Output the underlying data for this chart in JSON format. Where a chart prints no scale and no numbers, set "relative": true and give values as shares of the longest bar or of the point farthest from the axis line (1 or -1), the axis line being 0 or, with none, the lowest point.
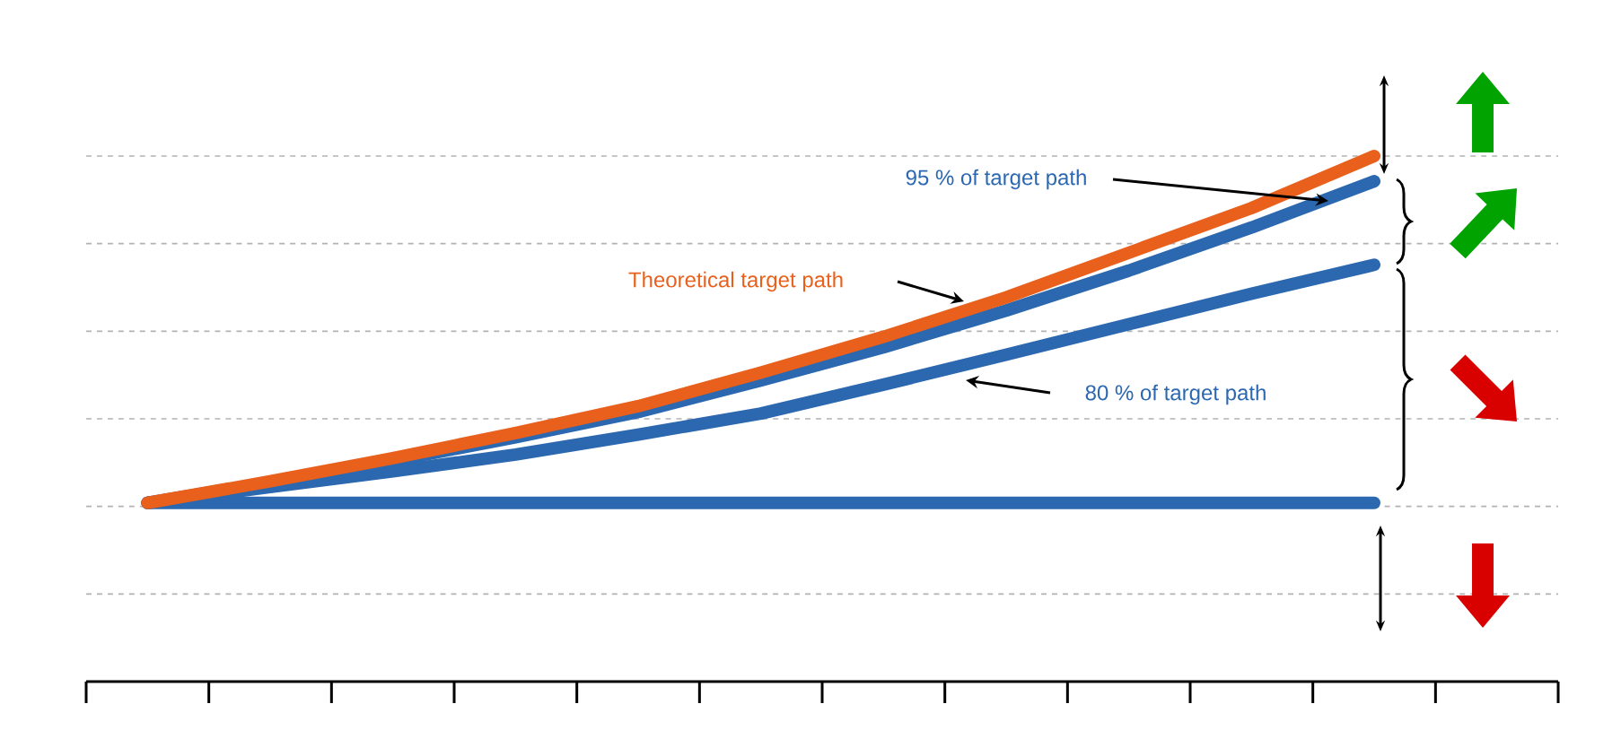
{
  "chart_data": {
    "type": "line",
    "relative": true,
    "grid": "y",
    "tick_labels": false,
    "categories": [
      null,
      null,
      null,
      null,
      null,
      null,
      null,
      null,
      null,
      null,
      null,
      null
    ],
    "series": [
      {
        "name": "Theoretical target path",
        "color": "#e8601c",
        "values": [
          0.34,
          0.381,
          0.425,
          0.473,
          0.524,
          0.588,
          0.656,
          0.731,
          0.816,
          0.901,
          1.0,
          null
        ]
      },
      {
        "name": "95 % of target path",
        "color": "#2b68b0",
        "values": [
          0.34,
          0.379,
          0.42,
          0.465,
          0.513,
          0.573,
          0.636,
          0.706,
          0.782,
          0.864,
          0.952,
          null
        ]
      },
      {
        "name": "80 % of target path",
        "color": "#2b68b0",
        "values": [
          0.34,
          0.37,
          0.4,
          0.432,
          0.47,
          0.51,
          0.565,
          0.622,
          0.68,
          0.738,
          0.793,
          null
        ]
      },
      {
        "color": "#2b68b0",
        "values": [
          0.34,
          0.34,
          0.34,
          0.34,
          0.34,
          0.34,
          0.34,
          0.34,
          0.34,
          0.34,
          0.34,
          null
        ]
      }
    ]
  }
}
